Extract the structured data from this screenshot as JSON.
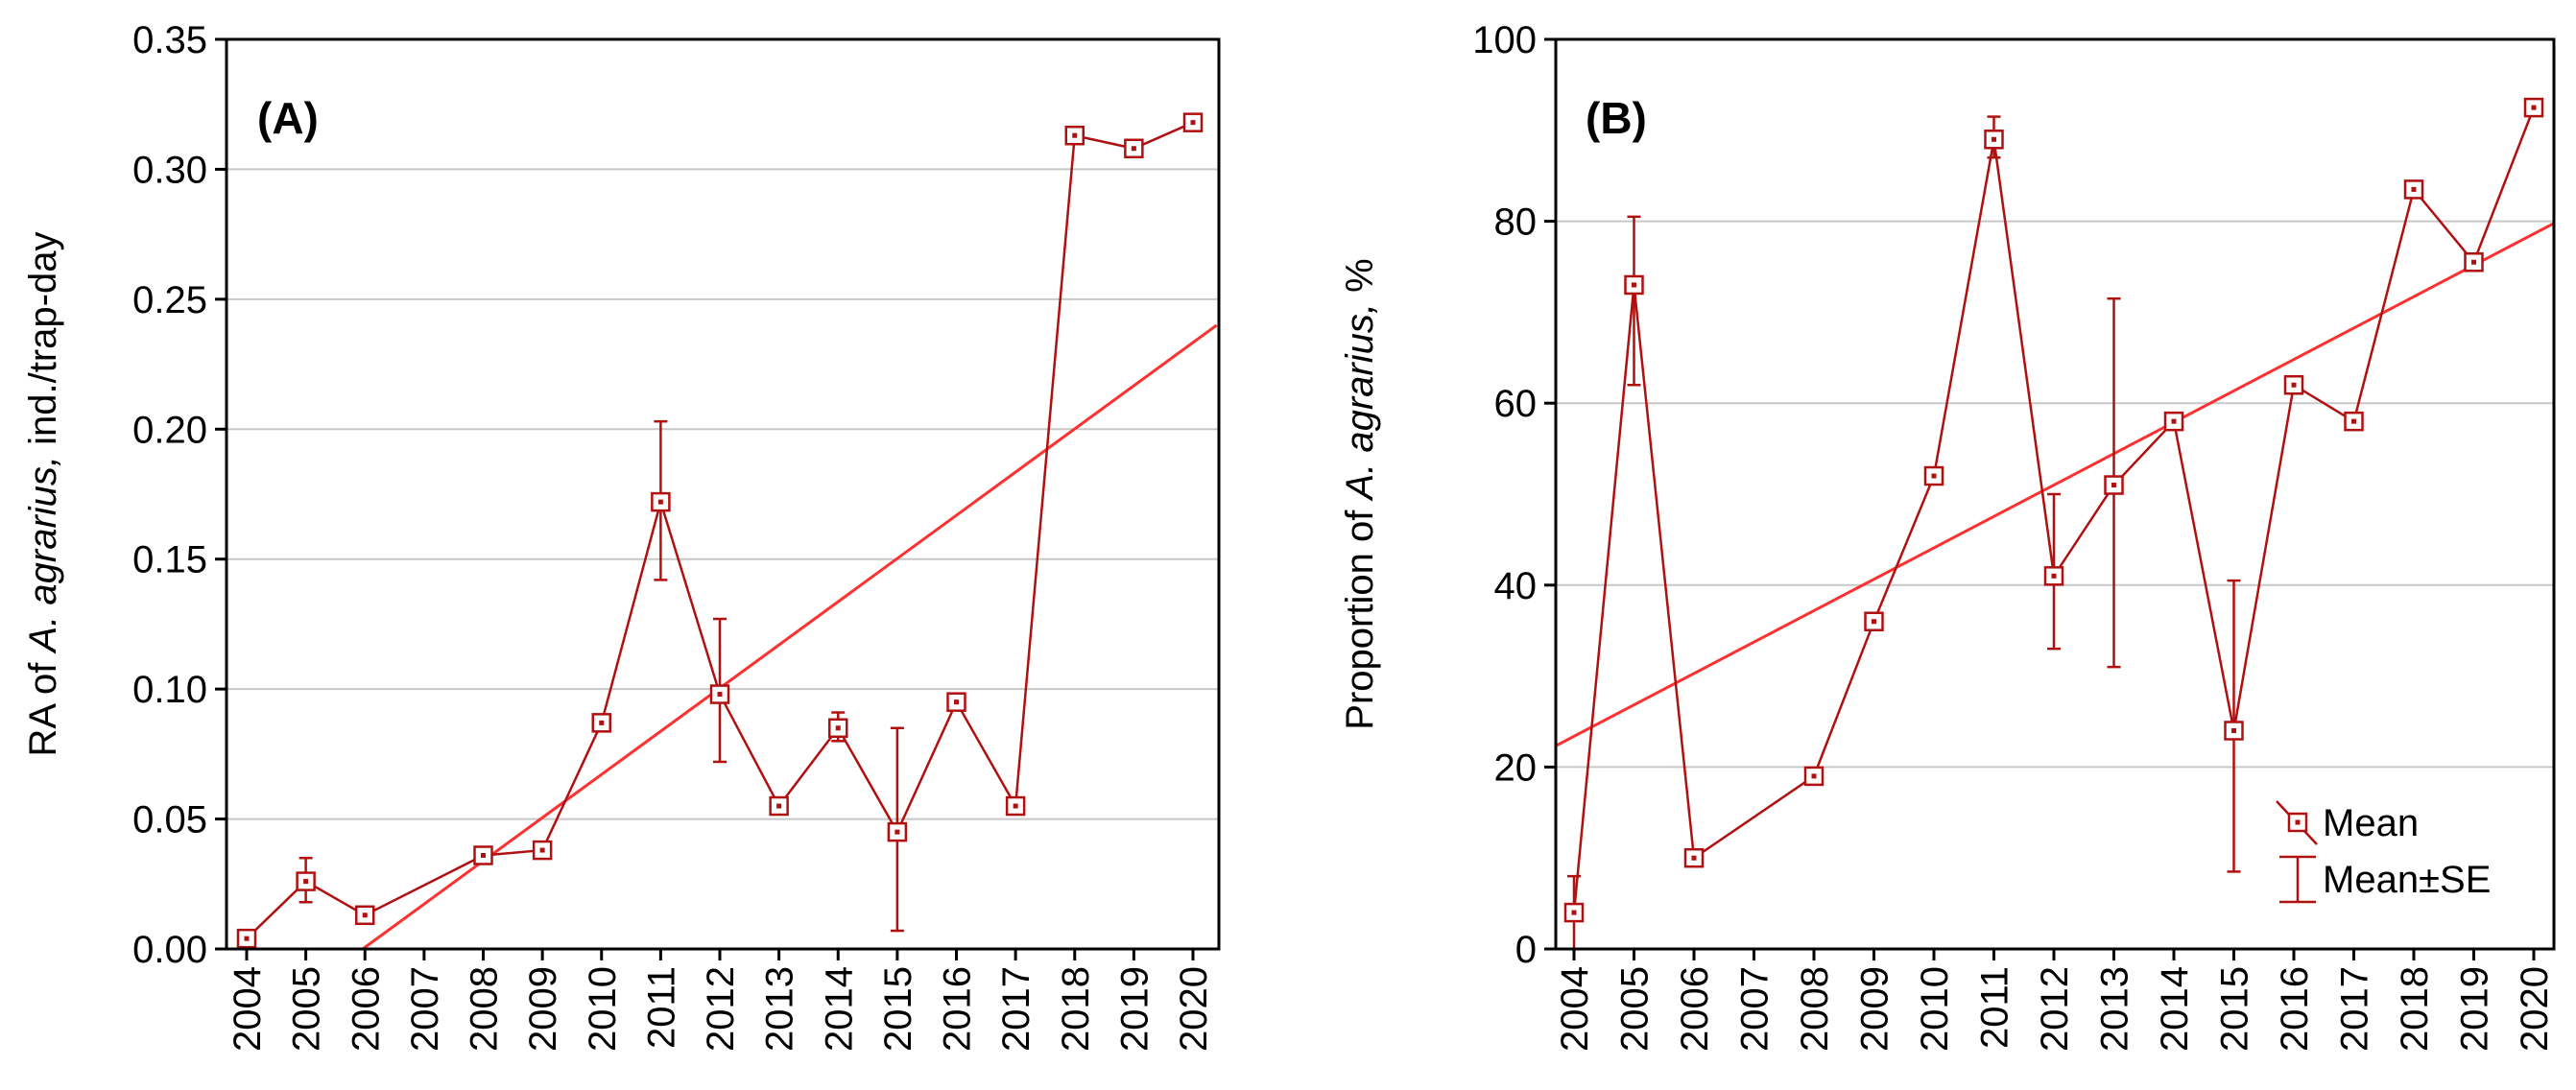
{
  "colors": {
    "series": "#b01010",
    "trend": "#ff3030",
    "grid": "#c8c8c8",
    "axis": "#000000"
  },
  "chart_data": [
    {
      "type": "line",
      "panel_label": "(A)",
      "ylabel_parts": [
        "RA of ",
        "A. agrarius,",
        " ind./trap-day"
      ],
      "ylim": [
        0,
        0.35
      ],
      "yticks": [
        "0.00",
        "0.05",
        "0.10",
        "0.15",
        "0.20",
        "0.25",
        "0.30",
        "0.35"
      ],
      "categories": [
        "2004",
        "2005",
        "2006",
        "2007",
        "2008",
        "2009",
        "2010",
        "2011",
        "2012",
        "2013",
        "2014",
        "2015",
        "2016",
        "2017",
        "2018",
        "2019",
        "2020"
      ],
      "grid": true,
      "series": [
        {
          "name": "Mean",
          "points": [
            {
              "x": "2004",
              "y": 0.004
            },
            {
              "x": "2005",
              "y": 0.026,
              "lo": 0.018,
              "hi": 0.035
            },
            {
              "x": "2006",
              "y": 0.013
            },
            {
              "x": "2008",
              "y": 0.036
            },
            {
              "x": "2009",
              "y": 0.038
            },
            {
              "x": "2010",
              "y": 0.087
            },
            {
              "x": "2011",
              "y": 0.172,
              "lo": 0.142,
              "hi": 0.203
            },
            {
              "x": "2012",
              "y": 0.098,
              "lo": 0.072,
              "hi": 0.127
            },
            {
              "x": "2013",
              "y": 0.055
            },
            {
              "x": "2014",
              "y": 0.085,
              "lo": 0.08,
              "hi": 0.091
            },
            {
              "x": "2015",
              "y": 0.045,
              "lo": 0.007,
              "hi": 0.085
            },
            {
              "x": "2016",
              "y": 0.095
            },
            {
              "x": "2017",
              "y": 0.055
            },
            {
              "x": "2018",
              "y": 0.313
            },
            {
              "x": "2019",
              "y": 0.308
            },
            {
              "x": "2020",
              "y": 0.318
            }
          ]
        }
      ],
      "trend": {
        "x_start": 2004,
        "y_start": -0.0326,
        "x_end": 2020.4,
        "y_end": 0.24
      }
    },
    {
      "type": "line",
      "panel_label": "(B)",
      "ylabel_parts": [
        "Proportion of ",
        "A. agrarius,",
        " %"
      ],
      "ylim": [
        0,
        100
      ],
      "yticks": [
        "0",
        "20",
        "40",
        "60",
        "80",
        "100"
      ],
      "categories": [
        "2004",
        "2005",
        "2006",
        "2007",
        "2008",
        "2009",
        "2010",
        "2011",
        "2012",
        "2013",
        "2014",
        "2015",
        "2016",
        "2017",
        "2018",
        "2019",
        "2020"
      ],
      "grid": true,
      "series": [
        {
          "name": "Mean",
          "points": [
            {
              "x": "2004",
              "y": 4,
              "lo": 0,
              "hi": 8
            },
            {
              "x": "2005",
              "y": 73,
              "lo": 62,
              "hi": 80.5
            },
            {
              "x": "2006",
              "y": 10
            },
            {
              "x": "2008",
              "y": 19
            },
            {
              "x": "2009",
              "y": 36
            },
            {
              "x": "2010",
              "y": 52
            },
            {
              "x": "2011",
              "y": 89,
              "lo": 87,
              "hi": 91.5
            },
            {
              "x": "2012",
              "y": 41,
              "lo": 33,
              "hi": 50
            },
            {
              "x": "2013",
              "y": 51,
              "lo": 31,
              "hi": 71.5
            },
            {
              "x": "2014",
              "y": 58
            },
            {
              "x": "2015",
              "y": 24,
              "lo": 8.5,
              "hi": 40.5
            },
            {
              "x": "2016",
              "y": 62
            },
            {
              "x": "2017",
              "y": 58
            },
            {
              "x": "2018",
              "y": 83.5
            },
            {
              "x": "2019",
              "y": 75.5
            },
            {
              "x": "2020",
              "y": 92.5
            }
          ]
        }
      ],
      "trend": {
        "x_start": 2003.6,
        "y_start": 22,
        "x_end": 2020.4,
        "y_end": 80
      },
      "legend": {
        "position": "bottom-right",
        "items": [
          "Mean",
          "Mean±SE"
        ]
      }
    }
  ]
}
